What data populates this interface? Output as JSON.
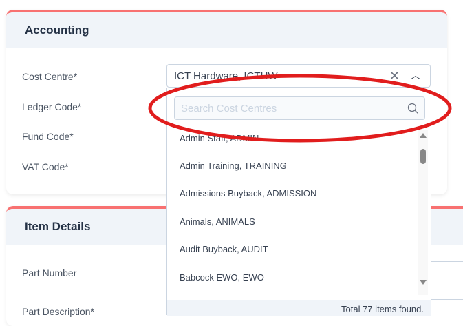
{
  "accounting": {
    "title": "Accounting",
    "labels": [
      "Cost Centre*",
      "Ledger Code*",
      "Fund Code*",
      "VAT Code*"
    ]
  },
  "cost_centre": {
    "value": "ICT Hardware, ICTHW",
    "search_placeholder": "Search Cost Centres",
    "options": [
      "Admin Staff, ADMIN",
      "Admin Training, TRAINING",
      "Admissions Buyback, ADMISSION",
      "Animals, ANIMALS",
      "Audit Buyback, AUDIT",
      "Babcock EWO, EWO"
    ],
    "footer": "Total 77 items found."
  },
  "item_details": {
    "title": "Item Details",
    "labels": [
      "Part Number",
      "Part Description*"
    ]
  },
  "colors": {
    "accent": "#f87171",
    "annotation": "#e11d1d"
  }
}
